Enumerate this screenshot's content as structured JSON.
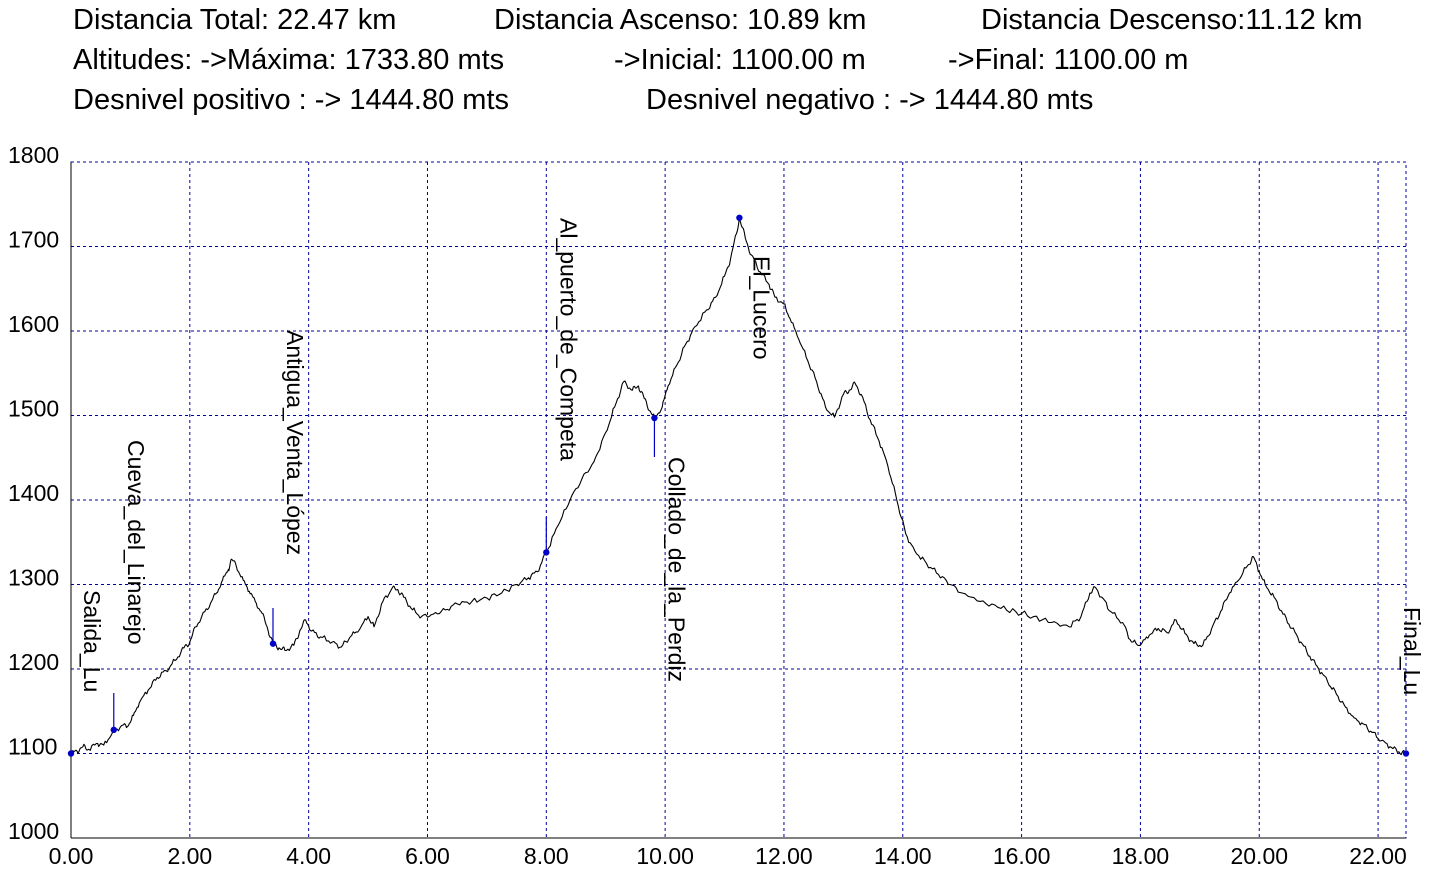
{
  "stats": {
    "row1": {
      "total": "Distancia Total: 22.47 km",
      "ascent": "Distancia Ascenso: 10.89 km",
      "descent": "Distancia Descenso:11.12 km"
    },
    "row2": {
      "max": "Altitudes: ->Máxima: 1733.80 mts",
      "initial": "->Inicial: 1100.00 m",
      "final": "->Final: 1100.00 m"
    },
    "row3": {
      "positive": "Desnivel positivo : -> 1444.80 mts",
      "negative": "Desnivel negativo : -> 1444.80 mts"
    }
  },
  "chart_data": {
    "type": "line",
    "xlim": [
      0,
      22.47
    ],
    "ylim": [
      1000,
      1800
    ],
    "x_ticks": [
      "0.00",
      "2.00",
      "4.00",
      "6.00",
      "8.00",
      "10.00",
      "12.00",
      "14.00",
      "16.00",
      "18.00",
      "20.00",
      "22.00"
    ],
    "y_ticks": [
      "1000",
      "1100",
      "1200",
      "1300",
      "1400",
      "1500",
      "1600",
      "1700",
      "1800"
    ],
    "grid": true,
    "colors": {
      "line": "#000000",
      "grid": "#0000a0",
      "marker": "#0000c8",
      "axis": "#000000"
    },
    "profile": [
      [
        0.0,
        1100
      ],
      [
        0.1,
        1103
      ],
      [
        0.2,
        1108
      ],
      [
        0.3,
        1105
      ],
      [
        0.45,
        1112
      ],
      [
        0.55,
        1110
      ],
      [
        0.7,
        1125
      ],
      [
        0.85,
        1133
      ],
      [
        0.95,
        1132
      ],
      [
        1.05,
        1145
      ],
      [
        1.15,
        1160
      ],
      [
        1.3,
        1175
      ],
      [
        1.45,
        1190
      ],
      [
        1.6,
        1198
      ],
      [
        1.75,
        1210
      ],
      [
        1.9,
        1225
      ],
      [
        2.0,
        1232
      ],
      [
        2.1,
        1250
      ],
      [
        2.2,
        1262
      ],
      [
        2.35,
        1278
      ],
      [
        2.45,
        1290
      ],
      [
        2.55,
        1305
      ],
      [
        2.65,
        1318
      ],
      [
        2.7,
        1330
      ],
      [
        2.78,
        1322
      ],
      [
        2.9,
        1305
      ],
      [
        3.0,
        1292
      ],
      [
        3.1,
        1280
      ],
      [
        3.2,
        1268
      ],
      [
        3.3,
        1250
      ],
      [
        3.4,
        1230
      ],
      [
        3.5,
        1225
      ],
      [
        3.6,
        1222
      ],
      [
        3.75,
        1228
      ],
      [
        3.85,
        1245
      ],
      [
        3.95,
        1258
      ],
      [
        4.05,
        1245
      ],
      [
        4.2,
        1238
      ],
      [
        4.4,
        1232
      ],
      [
        4.55,
        1226
      ],
      [
        4.7,
        1238
      ],
      [
        4.85,
        1246
      ],
      [
        5.0,
        1262
      ],
      [
        5.1,
        1250
      ],
      [
        5.25,
        1280
      ],
      [
        5.4,
        1295
      ],
      [
        5.5,
        1294
      ],
      [
        5.6,
        1285
      ],
      [
        5.75,
        1270
      ],
      [
        5.9,
        1262
      ],
      [
        6.1,
        1265
      ],
      [
        6.3,
        1270
      ],
      [
        6.5,
        1277
      ],
      [
        6.75,
        1280
      ],
      [
        7.0,
        1284
      ],
      [
        7.25,
        1290
      ],
      [
        7.5,
        1300
      ],
      [
        7.7,
        1308
      ],
      [
        7.85,
        1315
      ],
      [
        8.0,
        1338
      ],
      [
        8.2,
        1370
      ],
      [
        8.4,
        1400
      ],
      [
        8.6,
        1425
      ],
      [
        8.8,
        1445
      ],
      [
        9.0,
        1480
      ],
      [
        9.15,
        1510
      ],
      [
        9.3,
        1540
      ],
      [
        9.45,
        1530
      ],
      [
        9.55,
        1535
      ],
      [
        9.65,
        1520
      ],
      [
        9.75,
        1505
      ],
      [
        9.82,
        1497
      ],
      [
        9.95,
        1510
      ],
      [
        10.05,
        1535
      ],
      [
        10.2,
        1560
      ],
      [
        10.35,
        1585
      ],
      [
        10.5,
        1605
      ],
      [
        10.7,
        1625
      ],
      [
        10.85,
        1640
      ],
      [
        11.0,
        1665
      ],
      [
        11.1,
        1685
      ],
      [
        11.2,
        1715
      ],
      [
        11.25,
        1734
      ],
      [
        11.35,
        1710
      ],
      [
        11.45,
        1690
      ],
      [
        11.6,
        1670
      ],
      [
        11.75,
        1655
      ],
      [
        11.85,
        1640
      ],
      [
        12.0,
        1632
      ],
      [
        12.1,
        1615
      ],
      [
        12.25,
        1590
      ],
      [
        12.4,
        1565
      ],
      [
        12.55,
        1540
      ],
      [
        12.7,
        1510
      ],
      [
        12.85,
        1498
      ],
      [
        13.0,
        1525
      ],
      [
        13.1,
        1530
      ],
      [
        13.2,
        1538
      ],
      [
        13.3,
        1525
      ],
      [
        13.45,
        1495
      ],
      [
        13.6,
        1470
      ],
      [
        13.75,
        1440
      ],
      [
        13.9,
        1400
      ],
      [
        14.05,
        1360
      ],
      [
        14.2,
        1340
      ],
      [
        14.4,
        1325
      ],
      [
        14.6,
        1312
      ],
      [
        14.8,
        1300
      ],
      [
        15.0,
        1290
      ],
      [
        15.3,
        1280
      ],
      [
        15.6,
        1273
      ],
      [
        15.9,
        1268
      ],
      [
        16.2,
        1262
      ],
      [
        16.5,
        1255
      ],
      [
        16.8,
        1250
      ],
      [
        17.0,
        1262
      ],
      [
        17.15,
        1290
      ],
      [
        17.25,
        1296
      ],
      [
        17.35,
        1285
      ],
      [
        17.5,
        1268
      ],
      [
        17.7,
        1255
      ],
      [
        17.85,
        1232
      ],
      [
        18.0,
        1228
      ],
      [
        18.15,
        1240
      ],
      [
        18.3,
        1248
      ],
      [
        18.45,
        1243
      ],
      [
        18.6,
        1258
      ],
      [
        18.75,
        1242
      ],
      [
        18.9,
        1230
      ],
      [
        19.05,
        1228
      ],
      [
        19.2,
        1248
      ],
      [
        19.35,
        1268
      ],
      [
        19.5,
        1290
      ],
      [
        19.65,
        1305
      ],
      [
        19.8,
        1322
      ],
      [
        19.9,
        1333
      ],
      [
        20.0,
        1315
      ],
      [
        20.1,
        1300
      ],
      [
        20.25,
        1285
      ],
      [
        20.4,
        1265
      ],
      [
        20.55,
        1248
      ],
      [
        20.7,
        1232
      ],
      [
        20.85,
        1215
      ],
      [
        21.0,
        1200
      ],
      [
        21.15,
        1185
      ],
      [
        21.3,
        1170
      ],
      [
        21.45,
        1155
      ],
      [
        21.6,
        1142
      ],
      [
        21.75,
        1135
      ],
      [
        21.9,
        1125
      ],
      [
        22.05,
        1115
      ],
      [
        22.2,
        1108
      ],
      [
        22.35,
        1102
      ],
      [
        22.47,
        1100
      ]
    ],
    "waypoints": [
      {
        "name": "Salida_Lu",
        "x": 0.0,
        "y": 1100
      },
      {
        "name": "Cueva_del_Linarejo",
        "x": 0.72,
        "y": 1128
      },
      {
        "name": "Antigua_Venta_López",
        "x": 3.4,
        "y": 1230
      },
      {
        "name": "Al_puerto_de_Competa",
        "x": 8.0,
        "y": 1338
      },
      {
        "name": "Collado_de_la_Perdiz",
        "x": 9.82,
        "y": 1497
      },
      {
        "name": "El_Lucero",
        "x": 11.25,
        "y": 1734
      },
      {
        "name": "Final_Lu",
        "x": 22.47,
        "y": 1100
      }
    ]
  }
}
